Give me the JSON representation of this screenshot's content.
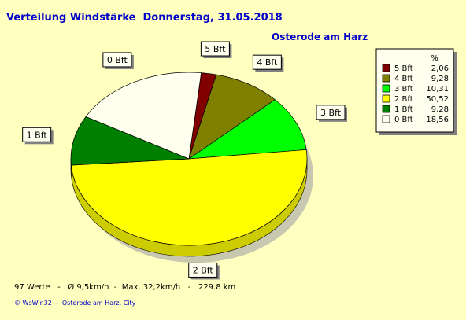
{
  "header": {
    "title": "Verteilung Windstärke  Donnerstag, 31.05.2018",
    "location": "Osterode am Harz"
  },
  "footer": {
    "stats": "97 Werte   -   Ø 9,5km/h  -  Max. 32,2km/h   -   229.8 km",
    "credit": "© WsWin32  -  Osterode am Harz, City"
  },
  "chart_data": {
    "type": "pie",
    "legend_header": "%",
    "legend_placement": "top-right",
    "series": [
      {
        "name": "5 Bft",
        "value": 2.06,
        "display": "2,06",
        "color": "#800000"
      },
      {
        "name": "4 Bft",
        "value": 9.28,
        "display": "9,28",
        "color": "#808000"
      },
      {
        "name": "3 Bft",
        "value": 10.31,
        "display": "10,31",
        "color": "#00ff00"
      },
      {
        "name": "2 Bft",
        "value": 50.52,
        "display": "50,52",
        "color": "#ffff00"
      },
      {
        "name": "1 Bft",
        "value": 9.28,
        "display": "9,28",
        "color": "#008000"
      },
      {
        "name": "0 Bft",
        "value": 18.56,
        "display": "18,56",
        "color": "#fffff0"
      }
    ]
  }
}
